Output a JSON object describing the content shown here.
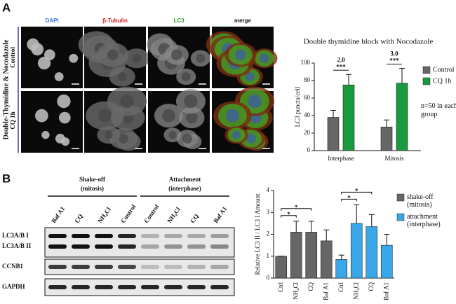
{
  "panel_labels": [
    "A",
    "B"
  ],
  "microscopy": {
    "side_label": "Double-Thymidine & Nocodazole",
    "columns": [
      "DAPI",
      "β-Tubulin",
      "LC3",
      "merge"
    ],
    "rows": [
      "Control",
      "CQ 1h"
    ]
  },
  "blot": {
    "groups": [
      {
        "label": "Shake-off",
        "sublabel": "(mitosis)"
      },
      {
        "label": "Attachment",
        "sublabel": "(interphase)"
      }
    ],
    "lanes": [
      "Baf A1",
      "CQ",
      "NH₄Cl",
      "Control",
      "Control",
      "NH₄Cl",
      "CQ",
      "Baf A1"
    ],
    "rows": [
      "LC3A/B I",
      "LC3A/B II",
      "CCNB1",
      "GAPDH"
    ]
  },
  "chart_data": [
    {
      "type": "bar",
      "title": "Double thymidine block with Nocodazole",
      "y_label": "LC3 puncta/cell",
      "categories": [
        "Interphase",
        "Mitosis"
      ],
      "series": [
        {
          "name": "Control",
          "color": "#666666",
          "values": [
            38,
            27
          ],
          "errors": [
            8,
            8
          ]
        },
        {
          "name": "CQ 1h",
          "color": "#1a9a3e",
          "values": [
            75,
            77
          ],
          "errors": [
            12,
            17
          ]
        }
      ],
      "ylim": [
        0,
        100
      ],
      "yticks": [
        0,
        20,
        40,
        60,
        80,
        100
      ],
      "annotations": [
        "2.0",
        "***",
        "3.0",
        "***"
      ],
      "note": "n=50 in each group"
    },
    {
      "type": "bar",
      "y_label": "Relative LC3 II / LC3 I Amount",
      "categories": [
        "Ctrl",
        "NH₄Cl",
        "CQ",
        "Baf A1"
      ],
      "series": [
        {
          "name": "shake-off (mitosis)",
          "color": "#666666",
          "values": [
            1,
            2.1,
            2.1,
            1.7
          ],
          "errors": [
            0,
            0.5,
            0.5,
            0.5
          ]
        },
        {
          "name": "attachment (interphase)",
          "color": "#3aa8e8",
          "values": [
            0.85,
            2.5,
            2.35,
            1.5
          ],
          "errors": [
            0.2,
            0.85,
            0.55,
            0.5
          ]
        }
      ],
      "ylim": [
        0,
        4
      ],
      "yticks": [
        0,
        1,
        2,
        3,
        4
      ],
      "annotations": [
        "*",
        "*",
        "*",
        "*"
      ]
    }
  ]
}
